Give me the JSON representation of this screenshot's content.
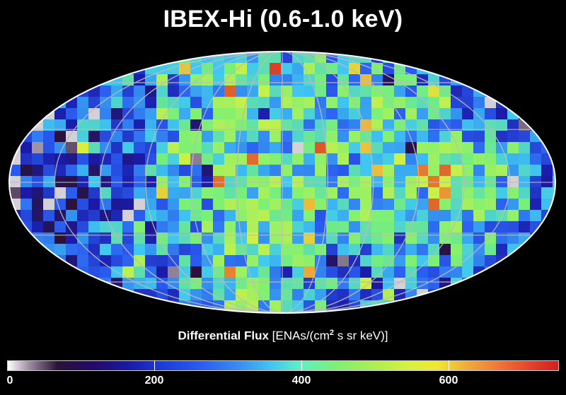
{
  "title": "IBEX-Hi (0.6-1.0 keV)",
  "colorbar": {
    "label_main": "Differential Flux",
    "label_unit_pre": "[ENAs/(cm",
    "label_sup": "2",
    "label_unit_post": " s sr keV)]",
    "ticks": [
      "0",
      "200",
      "400",
      "600"
    ],
    "tick_values": [
      0,
      200,
      400,
      600
    ],
    "max": 750,
    "colors": [
      "#ffffff",
      "#2a1238",
      "#1a1aa8",
      "#2a5cf0",
      "#40c8f0",
      "#78f078",
      "#d8f040",
      "#f0b038",
      "#d02020"
    ]
  },
  "map": {
    "projection": "Mollweide",
    "background": "#000000",
    "border_color": "#ffffff",
    "grid_color": "#bbbbbb"
  }
}
